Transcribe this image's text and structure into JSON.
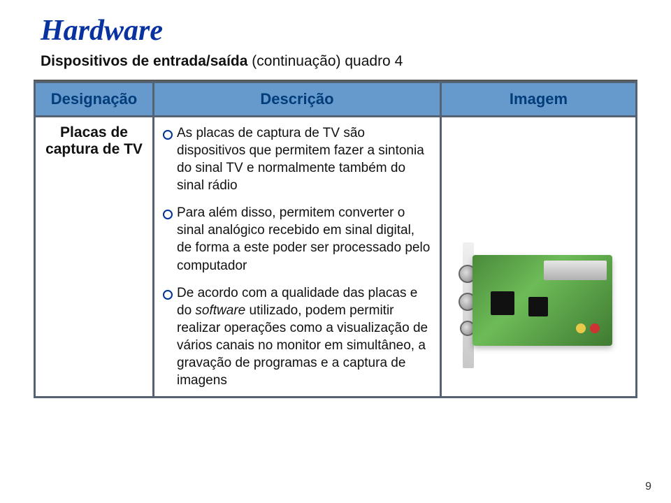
{
  "colors": {
    "title": "#0832a0",
    "subtitle": "#111111",
    "border": "#556272",
    "header_fg": "#003d7a",
    "header_bg": "#669acc",
    "body_fg": "#111111",
    "body_bg": "#ffffff"
  },
  "title": "Hardware",
  "subtitle_bold": "Dispositivos de entrada/saída",
  "subtitle_rest": " (continuação) quadro 4",
  "table": {
    "headers": {
      "designation": "Designação",
      "description": "Descrição",
      "image": "Imagem"
    },
    "row": {
      "designation": "Placas de captura de TV",
      "bullets": {
        "b1": "As placas de captura de TV são dispositivos que permitem fazer a sintonia do sinal TV e normalmente também do sinal rádio",
        "b2": "Para além disso, permitem converter o sinal analógico recebido em sinal digital, de forma a este poder ser processado pelo computador",
        "b3_pre": "De acordo com a qualidade das placas e do ",
        "b3_it": "software",
        "b3_post": " utilizado, podem permitir realizar operações como a visualização de vários canais no monitor em simultâneo, a gravação de programas e a captura de imagens"
      }
    }
  },
  "page_number": "9"
}
